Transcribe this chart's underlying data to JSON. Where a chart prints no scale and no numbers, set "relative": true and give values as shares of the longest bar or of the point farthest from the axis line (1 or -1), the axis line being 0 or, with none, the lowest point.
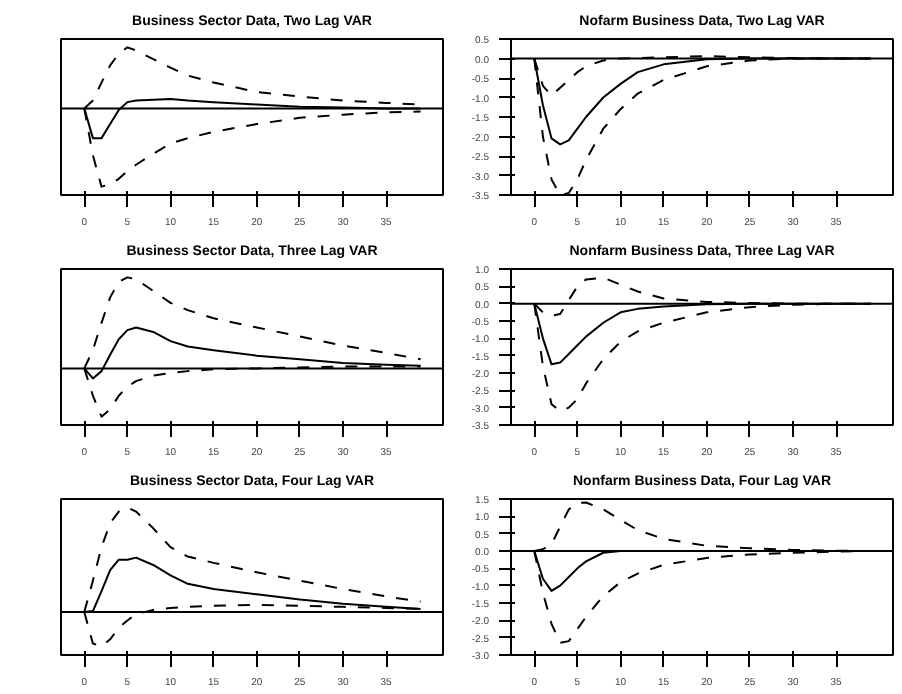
{
  "chart_data": [
    {
      "type": "line",
      "title": "Business Sector Data, Two Lag VAR",
      "relative": true,
      "tick_labels": "x",
      "x": [
        0,
        1,
        2,
        3,
        4,
        5,
        6,
        8,
        10,
        12,
        15,
        20,
        25,
        30,
        35,
        39
      ],
      "xlim": [
        -2.7,
        41.6
      ],
      "xticks": [
        0,
        5,
        10,
        15,
        20,
        25,
        30,
        35
      ],
      "grid": false,
      "series": [
        {
          "color": "#000000",
          "line_style": "dashed",
          "values": [
            0,
            0.1,
            0.33,
            0.55,
            0.7,
            0.78,
            0.74,
            0.63,
            0.52,
            0.42,
            0.33,
            0.21,
            0.15,
            0.1,
            0.07,
            0.05
          ]
        },
        {
          "color": "#000000",
          "line_style": "solid",
          "values": [
            0,
            -0.38,
            -0.38,
            -0.2,
            -0.02,
            0.08,
            0.1,
            0.11,
            0.12,
            0.1,
            0.08,
            0.05,
            0.02,
            0.01,
            0,
            0
          ]
        },
        {
          "color": "#000000",
          "line_style": "dashed",
          "values": [
            0,
            -0.6,
            -1,
            -0.97,
            -0.9,
            -0.8,
            -0.72,
            -0.58,
            -0.45,
            -0.38,
            -0.3,
            -0.2,
            -0.12,
            -0.08,
            -0.05,
            -0.04
          ]
        }
      ]
    },
    {
      "type": "line",
      "title": "Nofarm Business Data, Two Lag VAR",
      "x": [
        0,
        1,
        2,
        3,
        4,
        5,
        6,
        8,
        10,
        12,
        15,
        20,
        25,
        30,
        35,
        39
      ],
      "xlim": [
        -2.7,
        41.6
      ],
      "xticks": [
        0,
        5,
        10,
        15,
        20,
        25,
        30,
        35
      ],
      "ylim": [
        -3.5,
        0.5
      ],
      "yticks": [
        {
          "value": -3.5,
          "label": "-3.5"
        },
        {
          "value": -3,
          "label": "-3.0"
        },
        {
          "value": -2.5,
          "label": "-2.5"
        },
        {
          "value": -2,
          "label": "-2.0"
        },
        {
          "value": -1.5,
          "label": "-1.5"
        },
        {
          "value": -1,
          "label": "-1.0"
        },
        {
          "value": -0.5,
          "label": "-0.5"
        },
        {
          "value": 0,
          "label": "0.0"
        },
        {
          "value": 0.5,
          "label": "0.5"
        }
      ],
      "ref_lines": [
        {
          "axis": "y",
          "value": 0,
          "color": "#000000"
        }
      ],
      "grid": false,
      "series": [
        {
          "color": "#000000",
          "line_style": "dashed",
          "values": [
            0,
            -0.7,
            -0.95,
            -0.75,
            -0.55,
            -0.35,
            -0.2,
            -0.05,
            0,
            0.01,
            0.03,
            0.06,
            0.03,
            0.01,
            0,
            0
          ]
        },
        {
          "color": "#000000",
          "line_style": "solid",
          "values": [
            0,
            -1.2,
            -2.05,
            -2.2,
            -2.1,
            -1.8,
            -1.5,
            -1.0,
            -0.65,
            -0.35,
            -0.15,
            -0.02,
            0,
            0,
            0,
            0
          ]
        },
        {
          "color": "#000000",
          "line_style": "dashed",
          "values": [
            0,
            -2.0,
            -3.1,
            -3.5,
            -3.45,
            -3.1,
            -2.6,
            -1.8,
            -1.3,
            -0.9,
            -0.55,
            -0.2,
            -0.05,
            0,
            0,
            0
          ]
        }
      ]
    },
    {
      "type": "line",
      "title": "Business Sector Data, Three Lag VAR",
      "relative": true,
      "tick_labels": "x",
      "x": [
        0,
        1,
        2,
        3,
        4,
        5,
        6,
        8,
        10,
        12,
        15,
        20,
        25,
        30,
        35,
        39
      ],
      "xlim": [
        -2.7,
        41.6
      ],
      "xticks": [
        0,
        5,
        10,
        15,
        20,
        25,
        30,
        35
      ],
      "grid": false,
      "series": [
        {
          "color": "#000000",
          "line_style": "dashed",
          "values": [
            0,
            0.2,
            0.5,
            0.78,
            0.95,
            1.0,
            0.98,
            0.85,
            0.72,
            0.64,
            0.55,
            0.45,
            0.35,
            0.25,
            0.17,
            0.1
          ]
        },
        {
          "color": "#000000",
          "line_style": "solid",
          "values": [
            0,
            -0.11,
            -0.03,
            0.15,
            0.32,
            0.42,
            0.45,
            0.4,
            0.3,
            0.24,
            0.2,
            0.14,
            0.1,
            0.06,
            0.04,
            0.03
          ]
        },
        {
          "color": "#000000",
          "line_style": "dashed",
          "values": [
            0,
            -0.3,
            -0.53,
            -0.45,
            -0.3,
            -0.2,
            -0.14,
            -0.08,
            -0.05,
            -0.03,
            -0.01,
            0,
            0.01,
            0.02,
            0.02,
            0.02
          ]
        }
      ]
    },
    {
      "type": "line",
      "title": "Nonfarm Business Data, Three Lag VAR",
      "x": [
        0,
        1,
        2,
        3,
        4,
        5,
        6,
        8,
        10,
        12,
        15,
        20,
        25,
        30,
        35,
        39
      ],
      "xlim": [
        -2.7,
        41.6
      ],
      "xticks": [
        0,
        5,
        10,
        15,
        20,
        25,
        30,
        35
      ],
      "ylim": [
        -3.5,
        1.0
      ],
      "yticks": [
        {
          "value": -3.5,
          "label": "-3.5"
        },
        {
          "value": -3,
          "label": "-3.0"
        },
        {
          "value": -2.5,
          "label": "-2.5"
        },
        {
          "value": -2,
          "label": "-2.0"
        },
        {
          "value": -1.5,
          "label": "-1.5"
        },
        {
          "value": -1,
          "label": "-1.0"
        },
        {
          "value": -0.5,
          "label": "-0.5"
        },
        {
          "value": 0,
          "label": "0.0"
        },
        {
          "value": 0.5,
          "label": "0.5"
        },
        {
          "value": 1,
          "label": "1.0"
        }
      ],
      "ref_lines": [
        {
          "axis": "y",
          "value": 0,
          "color": "#000000"
        }
      ],
      "grid": false,
      "series": [
        {
          "color": "#000000",
          "line_style": "dashed",
          "values": [
            0,
            -0.25,
            -0.35,
            -0.3,
            0.1,
            0.5,
            0.7,
            0.75,
            0.55,
            0.35,
            0.15,
            0.05,
            0.02,
            0,
            0,
            0
          ]
        },
        {
          "color": "#000000",
          "line_style": "solid",
          "values": [
            0,
            -1.0,
            -1.75,
            -1.7,
            -1.45,
            -1.2,
            -0.95,
            -0.55,
            -0.25,
            -0.15,
            -0.08,
            -0.02,
            0,
            0,
            0,
            0
          ]
        },
        {
          "color": "#000000",
          "line_style": "dashed",
          "values": [
            0,
            -1.8,
            -2.9,
            -3.1,
            -3.0,
            -2.75,
            -2.3,
            -1.6,
            -1.1,
            -0.8,
            -0.55,
            -0.25,
            -0.1,
            -0.03,
            0,
            0
          ]
        }
      ]
    },
    {
      "type": "line",
      "title": "Business Sector Data, Four Lag VAR",
      "relative": true,
      "tick_labels": "x",
      "x": [
        0,
        1,
        2,
        3,
        4,
        5,
        6,
        8,
        10,
        12,
        15,
        20,
        25,
        30,
        35,
        39
      ],
      "xlim": [
        -2.7,
        41.6
      ],
      "xticks": [
        0,
        5,
        10,
        15,
        20,
        25,
        30,
        35
      ],
      "grid": false,
      "series": [
        {
          "color": "#000000",
          "line_style": "dashed",
          "values": [
            0,
            0.3,
            0.62,
            0.85,
            0.96,
            1.0,
            0.96,
            0.8,
            0.62,
            0.53,
            0.47,
            0.38,
            0.3,
            0.22,
            0.15,
            0.1
          ]
        },
        {
          "color": "#000000",
          "line_style": "solid",
          "values": [
            0,
            0.01,
            0.2,
            0.4,
            0.5,
            0.5,
            0.52,
            0.45,
            0.35,
            0.27,
            0.22,
            0.17,
            0.12,
            0.08,
            0.05,
            0.03
          ]
        },
        {
          "color": "#000000",
          "line_style": "dashed",
          "values": [
            0,
            -0.3,
            -0.33,
            -0.26,
            -0.15,
            -0.08,
            -0.02,
            0.02,
            0.04,
            0.05,
            0.06,
            0.07,
            0.06,
            0.05,
            0.04,
            0.03
          ]
        }
      ]
    },
    {
      "type": "line",
      "title": "Nonfarm Business Data, Four Lag VAR",
      "x": [
        0,
        1,
        2,
        3,
        4,
        5,
        6,
        8,
        10,
        12,
        15,
        20,
        25,
        30,
        35,
        39
      ],
      "xlim": [
        -2.7,
        41.6
      ],
      "xticks": [
        0,
        5,
        10,
        15,
        20,
        25,
        30,
        35
      ],
      "ylim": [
        -3.0,
        1.5
      ],
      "yticks": [
        {
          "value": -3,
          "label": "-3.0"
        },
        {
          "value": -2.5,
          "label": "-2.5"
        },
        {
          "value": -2,
          "label": "-2.0"
        },
        {
          "value": -1.5,
          "label": "-1.5"
        },
        {
          "value": -1,
          "label": "-1.0"
        },
        {
          "value": -0.5,
          "label": "-0.5"
        },
        {
          "value": 0,
          "label": "0.0"
        },
        {
          "value": 0.5,
          "label": "0.5"
        },
        {
          "value": 1,
          "label": "1.0"
        },
        {
          "value": 1.5,
          "label": "1.5"
        }
      ],
      "ref_lines": [
        {
          "axis": "y",
          "value": 0,
          "color": "#000000"
        }
      ],
      "grid": false,
      "series": [
        {
          "color": "#000000",
          "line_style": "dashed",
          "values": [
            0,
            0.05,
            0.2,
            0.7,
            1.2,
            1.38,
            1.4,
            1.2,
            0.9,
            0.6,
            0.35,
            0.15,
            0.08,
            0.03,
            0.01,
            0
          ]
        },
        {
          "color": "#000000",
          "line_style": "solid",
          "values": [
            0,
            -0.8,
            -1.15,
            -1.0,
            -0.75,
            -0.5,
            -0.3,
            -0.05,
            0,
            0,
            0,
            0,
            0,
            0,
            0,
            0
          ]
        },
        {
          "color": "#000000",
          "line_style": "dashed",
          "values": [
            0,
            -1.2,
            -2.1,
            -2.65,
            -2.6,
            -2.25,
            -1.9,
            -1.3,
            -0.9,
            -0.65,
            -0.4,
            -0.2,
            -0.1,
            -0.05,
            -0.02,
            0
          ]
        }
      ]
    }
  ]
}
